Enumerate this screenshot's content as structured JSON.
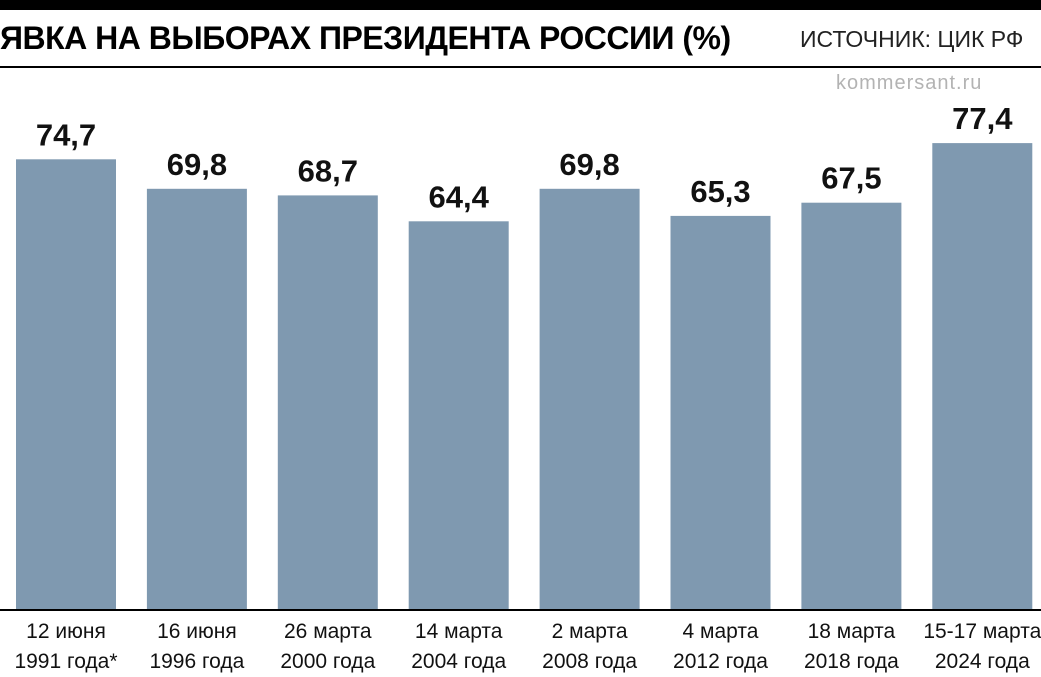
{
  "header": {
    "title": "ЯВКА НА ВЫБОРАХ ПРЕЗИДЕНТА РОССИИ (%)",
    "source": "ИСТОЧНИК: ЦИК РФ",
    "watermark": "kommersant.ru"
  },
  "colors": {
    "bar": "#7f99b0",
    "axis": "#000000",
    "text": "#111111"
  },
  "chart_data": {
    "type": "bar",
    "title": "ЯВКА НА ВЫБОРАХ ПРЕЗИДЕНТА РОССИИ (%)",
    "xlabel": "",
    "ylabel": "",
    "ylim": [
      0,
      80
    ],
    "grid": false,
    "categories": [
      [
        "12 июня",
        "1991 года*"
      ],
      [
        "16 июня",
        "1996 года"
      ],
      [
        "26 марта",
        "2000 года"
      ],
      [
        "14 марта",
        "2004 года"
      ],
      [
        "2 марта",
        "2008 года"
      ],
      [
        "4 марта",
        "2012 года"
      ],
      [
        "18 марта",
        "2018 года"
      ],
      [
        "15-17 марта",
        "2024 года"
      ]
    ],
    "values": [
      74.7,
      69.8,
      68.7,
      64.4,
      69.8,
      65.3,
      67.5,
      77.4
    ],
    "value_labels": [
      "74,7",
      "69,8",
      "68,7",
      "64,4",
      "69,8",
      "65,3",
      "67,5",
      "77,4"
    ]
  }
}
